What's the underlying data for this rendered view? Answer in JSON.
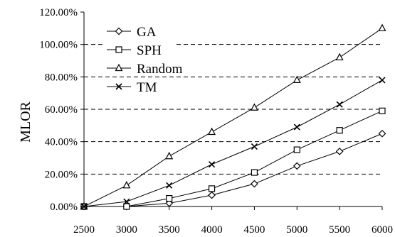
{
  "chart_data": {
    "type": "line",
    "title": "",
    "xlabel": "",
    "ylabel": "MLOR",
    "x": [
      2500,
      3000,
      3500,
      4000,
      4500,
      5000,
      5500,
      6000
    ],
    "x_tick_labels": [
      "2500",
      "3000",
      "3500",
      "4000",
      "4500",
      "5000",
      "5500",
      "6000"
    ],
    "y_tick_labels": [
      "0.00%",
      "20.00%",
      "40.00%",
      "60.00%",
      "80.00%",
      "100.00%",
      "120.00%"
    ],
    "y_ticks": [
      0,
      20,
      40,
      60,
      80,
      100,
      120
    ],
    "ylim": [
      0,
      120
    ],
    "xlim": [
      2500,
      6000
    ],
    "grid": "dashed horizontal",
    "legend_position": "top-left",
    "series": [
      {
        "name": "GA",
        "marker": "diamond",
        "values": [
          0,
          0,
          2,
          7,
          14,
          25,
          34,
          45
        ]
      },
      {
        "name": "SPH",
        "marker": "square",
        "values": [
          0,
          0,
          5,
          11,
          21,
          35,
          47,
          59
        ]
      },
      {
        "name": "Random",
        "marker": "triangle",
        "values": [
          0,
          13,
          31,
          46,
          61,
          78,
          92,
          110
        ]
      },
      {
        "name": "TM",
        "marker": "x",
        "values": [
          0,
          3,
          13,
          26,
          37,
          49,
          63,
          78
        ]
      }
    ]
  }
}
